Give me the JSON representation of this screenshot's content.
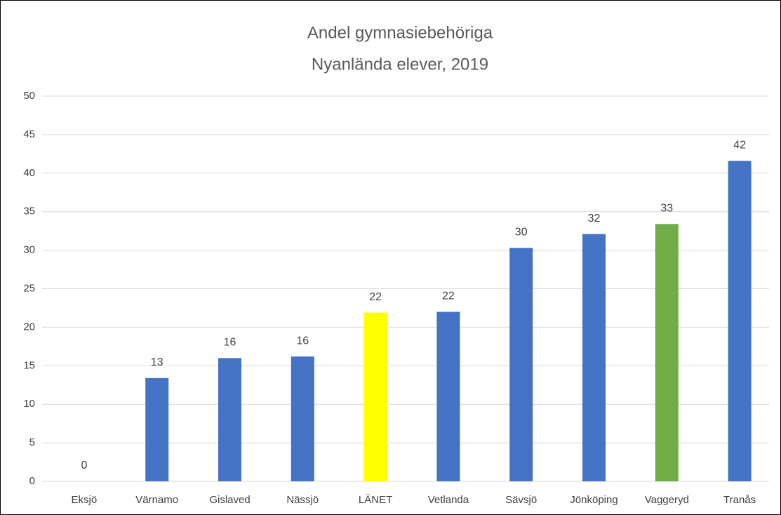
{
  "chart_data": {
    "type": "bar",
    "title": "Andel gymnasiebehöriga",
    "subtitle": "Nyanlända elever, 2019",
    "categories": [
      "Eksjö",
      "Värnamo",
      "Gislaved",
      "Nässjö",
      "LÄNET",
      "Vetlanda",
      "Sävsjö",
      "Jönköping",
      "Vaggeryd",
      "Tranås"
    ],
    "values": [
      0,
      13.4,
      16.0,
      16.2,
      21.9,
      22.0,
      30.3,
      32.1,
      33.4,
      41.6
    ],
    "value_labels": [
      "0",
      "13",
      "16",
      "16",
      "22",
      "22",
      "30",
      "32",
      "33",
      "42"
    ],
    "colors": [
      "#4472c4",
      "#4472c4",
      "#4472c4",
      "#4472c4",
      "#ffff00",
      "#4472c4",
      "#4472c4",
      "#4472c4",
      "#70ad47",
      "#4472c4"
    ],
    "ylim": [
      0,
      50
    ],
    "yticks": [
      0,
      5,
      10,
      15,
      20,
      25,
      30,
      35,
      40,
      45,
      50
    ],
    "grid": true
  }
}
